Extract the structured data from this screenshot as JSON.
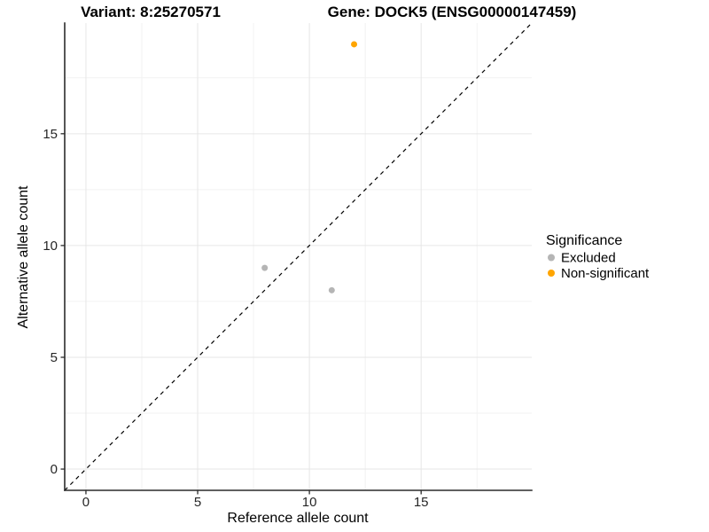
{
  "titles": {
    "variant": "Variant: 8:25270571",
    "gene": "Gene: DOCK5 (ENSG00000147459)"
  },
  "chart_data": {
    "type": "scatter",
    "title_left": "Variant: 8:25270571",
    "title_right": "Gene: DOCK5 (ENSG00000147459)",
    "xlabel": "Reference allele count",
    "ylabel": "Alternative allele count",
    "xlim": [
      -0.95,
      19.95
    ],
    "ylim": [
      -0.95,
      19.95
    ],
    "x_ticks": [
      0,
      5,
      10,
      15
    ],
    "y_ticks": [
      0,
      5,
      10,
      15
    ],
    "x_minor_ticks": [
      2.5,
      7.5,
      12.5,
      17.5
    ],
    "y_minor_ticks": [
      2.5,
      7.5,
      12.5,
      17.5
    ],
    "grid": true,
    "background": "#ffffff",
    "reference_line": {
      "kind": "abline",
      "slope": 1,
      "intercept": 0,
      "style": "dashed",
      "color": "#000000"
    },
    "legend": {
      "title": "Significance",
      "position": "right"
    },
    "series": [
      {
        "name": "Excluded",
        "color": "#b5b5b5",
        "points": [
          [
            8,
            9
          ],
          [
            11,
            8
          ]
        ]
      },
      {
        "name": "Non-significant",
        "color": "#ffa500",
        "points": [
          [
            12,
            19
          ]
        ]
      }
    ]
  }
}
